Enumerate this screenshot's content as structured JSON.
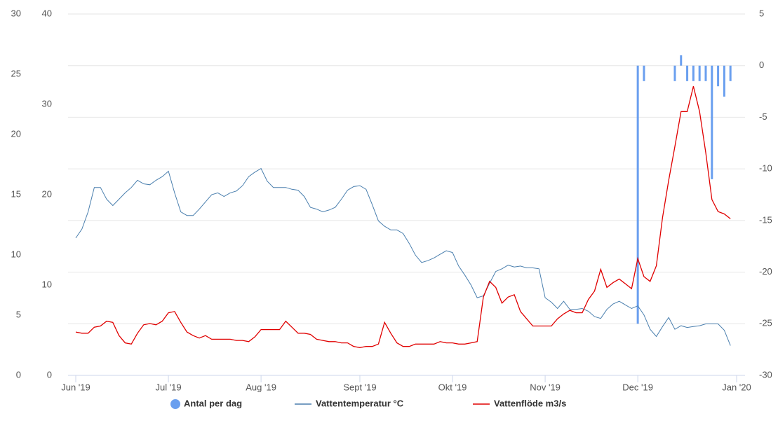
{
  "chart_data": {
    "type": "line",
    "categories": [
      "Jun '19",
      null,
      null,
      null,
      null,
      null,
      null,
      null,
      null,
      null,
      null,
      null,
      null,
      null,
      null,
      "Jul '19",
      null,
      null,
      null,
      null,
      null,
      null,
      null,
      null,
      null,
      null,
      null,
      null,
      null,
      null,
      "Aug '19",
      null,
      null,
      null,
      null,
      null,
      null,
      null,
      null,
      null,
      null,
      null,
      null,
      null,
      null,
      null,
      "Sept '19",
      null,
      null,
      null,
      null,
      null,
      null,
      null,
      null,
      null,
      null,
      null,
      null,
      null,
      null,
      "Okt '19",
      null,
      null,
      null,
      null,
      null,
      null,
      null,
      null,
      null,
      null,
      null,
      null,
      null,
      null,
      "Nov '19",
      null,
      null,
      null,
      null,
      null,
      null,
      null,
      null,
      null,
      null,
      null,
      null,
      null,
      null,
      "Dec '19",
      null,
      null,
      null,
      null,
      null,
      null,
      null,
      null,
      null,
      null,
      null,
      null,
      null,
      null,
      null,
      "Jan '20"
    ],
    "series": [
      {
        "name": "Antal per dag",
        "type": "bar",
        "axis": "y2",
        "color": "#6a9fef",
        "values": [
          null,
          null,
          null,
          null,
          null,
          null,
          null,
          null,
          null,
          null,
          null,
          null,
          null,
          null,
          null,
          null,
          null,
          null,
          null,
          null,
          null,
          null,
          null,
          null,
          null,
          null,
          null,
          null,
          null,
          null,
          null,
          null,
          null,
          null,
          null,
          null,
          null,
          null,
          null,
          null,
          null,
          null,
          null,
          null,
          null,
          null,
          null,
          null,
          null,
          null,
          null,
          null,
          null,
          null,
          null,
          null,
          null,
          null,
          null,
          null,
          null,
          null,
          null,
          null,
          null,
          null,
          null,
          null,
          null,
          null,
          null,
          null,
          null,
          null,
          null,
          null,
          null,
          null,
          null,
          null,
          null,
          null,
          null,
          null,
          null,
          null,
          null,
          null,
          null,
          null,
          null,
          -25,
          -1.5,
          null,
          null,
          null,
          null,
          -1.5,
          1,
          -1.5,
          -1.5,
          -1.5,
          -1.5,
          -11,
          -2,
          -3,
          -1.5,
          null
        ]
      },
      {
        "name": "Vattentemperatur °C",
        "type": "line",
        "axis": "y",
        "color": "#4a7fae",
        "values": [
          15.2,
          16.2,
          18.1,
          20.8,
          20.8,
          19.5,
          18.8,
          19.5,
          20.2,
          20.8,
          21.6,
          21.2,
          21.1,
          21.6,
          22.0,
          22.6,
          20.2,
          18.1,
          17.7,
          17.7,
          18.4,
          19.2,
          20.0,
          20.2,
          19.8,
          20.2,
          20.4,
          21.0,
          22.0,
          22.5,
          22.9,
          21.5,
          20.8,
          20.8,
          20.8,
          20.6,
          20.5,
          19.8,
          18.6,
          18.4,
          18.1,
          18.3,
          18.6,
          19.5,
          20.5,
          20.9,
          21.0,
          20.6,
          18.9,
          17.1,
          16.5,
          16.1,
          16.1,
          15.7,
          14.6,
          13.3,
          12.5,
          12.7,
          13.0,
          13.4,
          13.8,
          13.6,
          12.1,
          11.1,
          10.0,
          8.6,
          8.8,
          10.2,
          11.5,
          11.8,
          12.2,
          12.0,
          12.1,
          11.9,
          11.9,
          11.8,
          8.6,
          8.1,
          7.4,
          8.2,
          7.3,
          7.3,
          7.4,
          7.1,
          6.5,
          6.3,
          7.3,
          7.9,
          8.2,
          7.8,
          7.4,
          7.7,
          6.7,
          5.1,
          4.3,
          5.4,
          6.4,
          5.1,
          5.5,
          5.3,
          5.4,
          5.5,
          5.7,
          5.7,
          5.7,
          5.0,
          3.3,
          null
        ]
      },
      {
        "name": "Vattenflöde m3/s",
        "type": "line",
        "axis": "y3",
        "color": "#e00000",
        "values": [
          3.6,
          3.5,
          3.5,
          4.0,
          4.1,
          4.5,
          4.4,
          3.3,
          2.7,
          2.6,
          3.5,
          4.2,
          4.3,
          4.2,
          4.5,
          5.2,
          5.3,
          4.4,
          3.6,
          3.3,
          3.1,
          3.3,
          3.0,
          3.0,
          3.0,
          3.0,
          2.9,
          2.9,
          2.8,
          3.2,
          3.8,
          3.8,
          3.8,
          3.8,
          4.5,
          4.0,
          3.5,
          3.5,
          3.4,
          3.0,
          2.9,
          2.8,
          2.8,
          2.7,
          2.7,
          2.4,
          2.3,
          2.4,
          2.4,
          2.6,
          4.4,
          3.5,
          2.7,
          2.4,
          2.4,
          2.6,
          2.6,
          2.6,
          2.6,
          2.8,
          2.7,
          2.7,
          2.6,
          2.6,
          2.7,
          2.8,
          6.5,
          7.8,
          7.3,
          6.0,
          6.5,
          6.7,
          5.3,
          4.7,
          4.1,
          4.1,
          4.1,
          4.1,
          4.7,
          5.1,
          5.4,
          5.2,
          5.2,
          6.3,
          7.0,
          8.8,
          7.3,
          7.7,
          8.0,
          7.6,
          7.2,
          9.7,
          8.2,
          7.8,
          9.1,
          13.1,
          16.2,
          19.0,
          21.9,
          21.9,
          24.0,
          21.9,
          18.5,
          14.6,
          13.6,
          13.4,
          13.0,
          null
        ]
      }
    ],
    "ylim": [
      0,
      40
    ],
    "yticks": [
      0,
      10,
      20,
      30,
      40
    ],
    "ycolor": "#4a7fae",
    "y2lim": [
      -30,
      5
    ],
    "y2ticks": [
      -30,
      -25,
      -20,
      -15,
      -10,
      -5,
      0,
      5
    ],
    "y2color": "#555555",
    "y3lim": [
      0,
      30
    ],
    "y3ticks": [
      0,
      5,
      10,
      15,
      20,
      25,
      30
    ],
    "y3color": "#e00000",
    "grid": true
  }
}
